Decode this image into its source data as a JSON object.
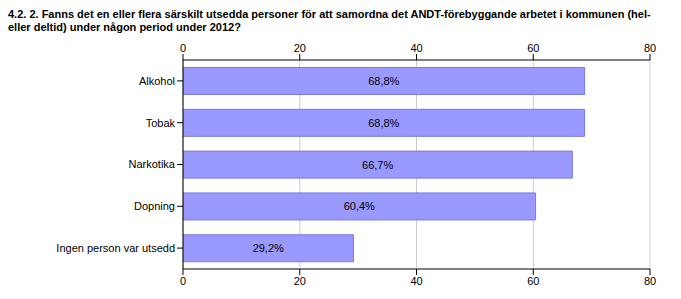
{
  "chart_data": {
    "type": "bar",
    "title": "4.2. 2. Fanns det en eller flera särskilt utsedda personer för att samordna det ANDT-förebyggande arbetet i kommunen (hel- eller deltid) under någon period under 2012?",
    "orientation": "horizontal",
    "categories": [
      "Alkohol",
      "Tobak",
      "Narkotika",
      "Dopning",
      "Ingen person var utsedd"
    ],
    "values": [
      68.8,
      68.8,
      66.7,
      60.4,
      29.2
    ],
    "value_labels": [
      "68,8%",
      "68,8%",
      "66,7%",
      "60,4%",
      "29,2%"
    ],
    "color": "#9999ff",
    "xlim": [
      0,
      80
    ],
    "xticks": [
      0,
      20,
      40,
      60,
      80
    ],
    "grid": true,
    "data_labels": true
  }
}
